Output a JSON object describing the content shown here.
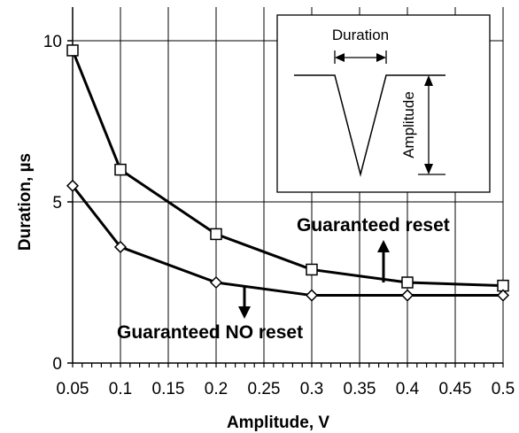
{
  "chart_data": {
    "type": "line",
    "xlabel": "Amplitude, V",
    "ylabel": "Duration, µs",
    "x_ticks": [
      "0.05",
      "0.1",
      "0.15",
      "0.2",
      "0.25",
      "0.3",
      "0.35",
      "0.4",
      "0.45",
      "0.5"
    ],
    "y_ticks": [
      "0",
      "5",
      "10"
    ],
    "xlim": [
      0.05,
      0.5
    ],
    "ylim": [
      0,
      10
    ],
    "grid": "horizontal and vertical",
    "series": [
      {
        "marker": "square",
        "x": [
          0.05,
          0.1,
          0.2,
          0.3,
          0.4,
          0.5
        ],
        "y": [
          9.7,
          6.0,
          4.0,
          2.9,
          2.5,
          2.4
        ]
      },
      {
        "marker": "diamond",
        "x": [
          0.05,
          0.1,
          0.2,
          0.3,
          0.4,
          0.5
        ],
        "y": [
          5.5,
          3.6,
          2.5,
          2.1,
          2.1,
          2.1
        ]
      }
    ],
    "annotations": {
      "upper": "Guaranteed reset",
      "lower": "Guaranteed NO reset"
    },
    "inset": {
      "duration_label": "Duration",
      "amplitude_label": "Amplitude"
    }
  }
}
